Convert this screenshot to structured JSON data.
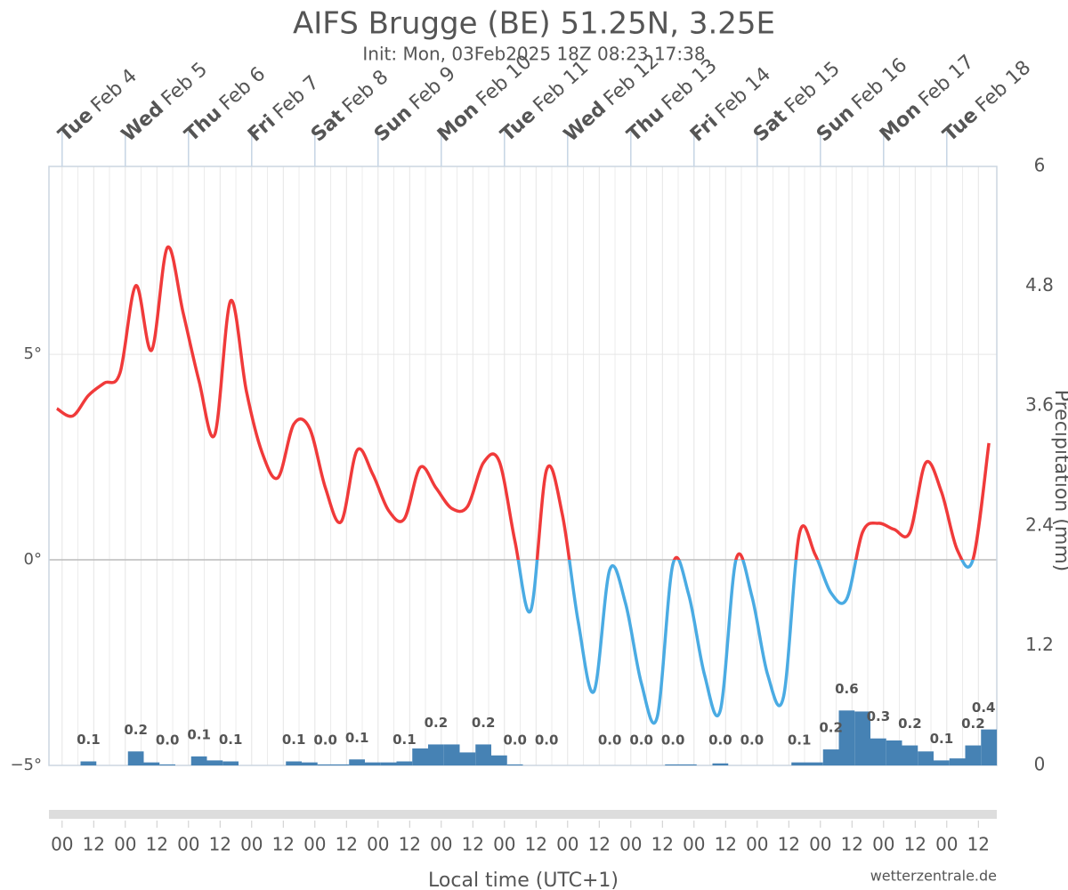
{
  "chart_data": {
    "type": "line",
    "title": "AIFS Brugge (BE) 51.25N, 3.25E",
    "subtitle": "Init: Mon, 03Feb2025 18Z 08:23 17:38",
    "x_label": "Local time (UTC+1)",
    "y2_label": "Precipitation (mm)",
    "credit": "wetterzentrale.de",
    "xlim": [
      "2025-02-03T19:00",
      "2025-02-18T19:00"
    ],
    "ylim": [
      -5,
      9.57
    ],
    "yticks": [
      {
        "value": -5,
        "label": "−5°"
      },
      {
        "value": 0,
        "label": "0°"
      },
      {
        "value": 5,
        "label": "5°"
      }
    ],
    "y2lim": [
      0,
      6
    ],
    "y2ticks": [
      0,
      1.2,
      2.4,
      3.6,
      4.8,
      6
    ],
    "grid": true,
    "xticks": [
      {
        "value": "2025-02-04T00:00",
        "label": "00"
      },
      {
        "value": "2025-02-04T12:00",
        "label": "12"
      },
      {
        "value": "2025-02-05T00:00",
        "label": "00"
      },
      {
        "value": "2025-02-05T12:00",
        "label": "12"
      },
      {
        "value": "2025-02-06T00:00",
        "label": "00"
      },
      {
        "value": "2025-02-06T12:00",
        "label": "12"
      },
      {
        "value": "2025-02-07T00:00",
        "label": "00"
      },
      {
        "value": "2025-02-07T12:00",
        "label": "12"
      },
      {
        "value": "2025-02-08T00:00",
        "label": "00"
      },
      {
        "value": "2025-02-08T12:00",
        "label": "12"
      },
      {
        "value": "2025-02-09T00:00",
        "label": "00"
      },
      {
        "value": "2025-02-09T12:00",
        "label": "12"
      },
      {
        "value": "2025-02-10T00:00",
        "label": "00"
      },
      {
        "value": "2025-02-10T12:00",
        "label": "12"
      },
      {
        "value": "2025-02-11T00:00",
        "label": "00"
      },
      {
        "value": "2025-02-11T12:00",
        "label": "12"
      },
      {
        "value": "2025-02-12T00:00",
        "label": "00"
      },
      {
        "value": "2025-02-12T12:00",
        "label": "12"
      },
      {
        "value": "2025-02-13T00:00",
        "label": "00"
      },
      {
        "value": "2025-02-13T12:00",
        "label": "12"
      },
      {
        "value": "2025-02-14T00:00",
        "label": "00"
      },
      {
        "value": "2025-02-14T12:00",
        "label": "12"
      },
      {
        "value": "2025-02-15T00:00",
        "label": "00"
      },
      {
        "value": "2025-02-15T12:00",
        "label": "12"
      },
      {
        "value": "2025-02-16T00:00",
        "label": "00"
      },
      {
        "value": "2025-02-16T12:00",
        "label": "12"
      },
      {
        "value": "2025-02-17T00:00",
        "label": "00"
      },
      {
        "value": "2025-02-17T12:00",
        "label": "12"
      },
      {
        "value": "2025-02-18T00:00",
        "label": "00"
      },
      {
        "value": "2025-02-18T12:00",
        "label": "12"
      }
    ],
    "day_labels": [
      {
        "x": "2025-02-04T00:00",
        "weekday": "Tue",
        "date": "Feb 4"
      },
      {
        "x": "2025-02-05T00:00",
        "weekday": "Wed",
        "date": "Feb 5"
      },
      {
        "x": "2025-02-06T00:00",
        "weekday": "Thu",
        "date": "Feb 6"
      },
      {
        "x": "2025-02-07T00:00",
        "weekday": "Fri",
        "date": "Feb 7"
      },
      {
        "x": "2025-02-08T00:00",
        "weekday": "Sat",
        "date": "Feb 8"
      },
      {
        "x": "2025-02-09T00:00",
        "weekday": "Sun",
        "date": "Feb 9"
      },
      {
        "x": "2025-02-10T00:00",
        "weekday": "Mon",
        "date": "Feb 10"
      },
      {
        "x": "2025-02-11T00:00",
        "weekday": "Tue",
        "date": "Feb 11"
      },
      {
        "x": "2025-02-12T00:00",
        "weekday": "Wed",
        "date": "Feb 12"
      },
      {
        "x": "2025-02-13T00:00",
        "weekday": "Thu",
        "date": "Feb 13"
      },
      {
        "x": "2025-02-14T00:00",
        "weekday": "Fri",
        "date": "Feb 14"
      },
      {
        "x": "2025-02-15T00:00",
        "weekday": "Sat",
        "date": "Feb 15"
      },
      {
        "x": "2025-02-16T00:00",
        "weekday": "Sun",
        "date": "Feb 16"
      },
      {
        "x": "2025-02-17T00:00",
        "weekday": "Mon",
        "date": "Feb 17"
      },
      {
        "x": "2025-02-18T00:00",
        "weekday": "Tue",
        "date": "Feb 18"
      }
    ],
    "temperature": {
      "color": "#f03a3a",
      "negative_color": "#4aabe3",
      "x": [
        "2025-02-03T22:00",
        "2025-02-04T04:00",
        "2025-02-04T10:00",
        "2025-02-04T16:00",
        "2025-02-04T22:00",
        "2025-02-05T04:00",
        "2025-02-05T10:00",
        "2025-02-05T16:00",
        "2025-02-05T22:00",
        "2025-02-06T04:00",
        "2025-02-06T10:00",
        "2025-02-06T16:00",
        "2025-02-06T22:00",
        "2025-02-07T04:00",
        "2025-02-07T10:00",
        "2025-02-07T16:00",
        "2025-02-07T22:00",
        "2025-02-08T04:00",
        "2025-02-08T10:00",
        "2025-02-08T16:00",
        "2025-02-08T22:00",
        "2025-02-09T04:00",
        "2025-02-09T10:00",
        "2025-02-09T16:00",
        "2025-02-09T22:00",
        "2025-02-10T04:00",
        "2025-02-10T10:00",
        "2025-02-10T16:00",
        "2025-02-10T22:00",
        "2025-02-11T04:00",
        "2025-02-11T10:00",
        "2025-02-11T16:00",
        "2025-02-11T22:00",
        "2025-02-12T04:00",
        "2025-02-12T10:00",
        "2025-02-12T16:00",
        "2025-02-12T22:00",
        "2025-02-13T04:00",
        "2025-02-13T10:00",
        "2025-02-13T16:00",
        "2025-02-13T22:00",
        "2025-02-14T04:00",
        "2025-02-14T10:00",
        "2025-02-14T16:00",
        "2025-02-14T22:00",
        "2025-02-15T04:00",
        "2025-02-15T10:00",
        "2025-02-15T16:00",
        "2025-02-15T22:00",
        "2025-02-16T04:00",
        "2025-02-16T10:00",
        "2025-02-16T16:00",
        "2025-02-16T22:00",
        "2025-02-17T04:00",
        "2025-02-17T10:00",
        "2025-02-17T16:00",
        "2025-02-17T22:00",
        "2025-02-18T04:00",
        "2025-02-18T10:00",
        "2025-02-18T16:00"
      ],
      "values": [
        3.68,
        3.5,
        4.0,
        4.3,
        4.55,
        6.67,
        5.1,
        7.6,
        6.0,
        4.35,
        3.05,
        6.3,
        4.1,
        2.6,
        2.0,
        3.3,
        3.2,
        1.75,
        0.93,
        2.66,
        2.08,
        1.2,
        1.0,
        2.25,
        1.75,
        1.25,
        1.3,
        2.36,
        2.4,
        0.45,
        -1.23,
        2.19,
        1.1,
        -1.5,
        -3.2,
        -0.24,
        -1.06,
        -3.0,
        -3.83,
        -0.1,
        -0.85,
        -2.8,
        -3.66,
        0.02,
        -0.89,
        -2.8,
        -3.33,
        0.63,
        0.13,
        -0.8,
        -0.95,
        0.67,
        0.89,
        0.74,
        0.67,
        2.36,
        1.65,
        0.24,
        0.02,
        2.84
      ]
    },
    "precipitation": {
      "axis": "y2",
      "color": "#4682b4",
      "bins": [
        "2025-02-03T19:00",
        "2025-02-04T01:00",
        "2025-02-04T07:00",
        "2025-02-04T13:00",
        "2025-02-04T19:00",
        "2025-02-05T01:00",
        "2025-02-05T07:00",
        "2025-02-05T13:00",
        "2025-02-05T19:00",
        "2025-02-06T01:00",
        "2025-02-06T07:00",
        "2025-02-06T13:00",
        "2025-02-06T19:00",
        "2025-02-07T01:00",
        "2025-02-07T07:00",
        "2025-02-07T13:00",
        "2025-02-07T19:00",
        "2025-02-08T01:00",
        "2025-02-08T07:00",
        "2025-02-08T13:00",
        "2025-02-08T19:00",
        "2025-02-09T01:00",
        "2025-02-09T07:00",
        "2025-02-09T13:00",
        "2025-02-09T19:00",
        "2025-02-10T01:00",
        "2025-02-10T07:00",
        "2025-02-10T13:00",
        "2025-02-10T19:00",
        "2025-02-11T01:00",
        "2025-02-11T07:00",
        "2025-02-11T13:00",
        "2025-02-11T19:00",
        "2025-02-12T01:00",
        "2025-02-12T07:00",
        "2025-02-12T13:00",
        "2025-02-12T19:00",
        "2025-02-13T01:00",
        "2025-02-13T07:00",
        "2025-02-13T13:00",
        "2025-02-13T19:00",
        "2025-02-14T01:00",
        "2025-02-14T07:00",
        "2025-02-14T13:00",
        "2025-02-14T19:00",
        "2025-02-15T01:00",
        "2025-02-15T07:00",
        "2025-02-15T13:00",
        "2025-02-15T19:00",
        "2025-02-16T01:00",
        "2025-02-16T07:00",
        "2025-02-16T13:00",
        "2025-02-16T19:00",
        "2025-02-17T01:00",
        "2025-02-17T07:00",
        "2025-02-17T13:00",
        "2025-02-17T19:00",
        "2025-02-18T01:00",
        "2025-02-18T07:00",
        "2025-02-18T13:00",
        "2025-02-18T19:00"
      ],
      "values": [
        0,
        0,
        0.04,
        0,
        0,
        0.14,
        0.03,
        0.01,
        0,
        0.09,
        0.05,
        0.04,
        0,
        0,
        0,
        0.04,
        0.03,
        0.01,
        0.01,
        0.06,
        0.03,
        0.03,
        0.04,
        0.17,
        0.21,
        0.21,
        0.13,
        0.21,
        0.1,
        0.01,
        0,
        0,
        0,
        0,
        0,
        0,
        0,
        0,
        0,
        0.01,
        0.01,
        0,
        0.02,
        0,
        0,
        0,
        0,
        0.03,
        0.03,
        0.16,
        0.55,
        0.54,
        0.27,
        0.25,
        0.2,
        0.14,
        0.05,
        0.07,
        0.2,
        0.36
      ]
    },
    "precip_totals": {
      "x": [
        "2025-02-04T10:00",
        "2025-02-05T04:00",
        "2025-02-05T16:00",
        "2025-02-06T04:00",
        "2025-02-06T16:00",
        "2025-02-07T16:00",
        "2025-02-08T04:00",
        "2025-02-08T16:00",
        "2025-02-09T10:00",
        "2025-02-09T22:00",
        "2025-02-10T16:00",
        "2025-02-11T04:00",
        "2025-02-11T16:00",
        "2025-02-12T16:00",
        "2025-02-13T04:00",
        "2025-02-13T16:00",
        "2025-02-14T10:00",
        "2025-02-14T22:00",
        "2025-02-15T16:00",
        "2025-02-16T04:00",
        "2025-02-16T10:00",
        "2025-02-16T22:00",
        "2025-02-17T10:00",
        "2025-02-17T22:00",
        "2025-02-18T10:00",
        "2025-02-18T14:00"
      ],
      "values": [
        0.1,
        0.2,
        0,
        0.1,
        0.1,
        0.1,
        0,
        0.1,
        0.1,
        0.2,
        0.2,
        0,
        0,
        0,
        0,
        0,
        0,
        0,
        0.1,
        0.2,
        0.6,
        0.3,
        0.2,
        0.1,
        0.2,
        0.4
      ],
      "value_labels": [
        "0.1",
        "0.2",
        "0.0",
        "0.1",
        "0.1",
        "0.1",
        "0.0",
        "0.1",
        "0.1",
        "0.2",
        "0.2",
        "0.0",
        "0.0",
        "0.0",
        "0.0",
        "0.0",
        "0.0",
        "0.0",
        "0.1",
        "0.2",
        "0.6",
        "0.3",
        "0.2",
        "0.1",
        "0.2",
        "0.4"
      ]
    }
  }
}
